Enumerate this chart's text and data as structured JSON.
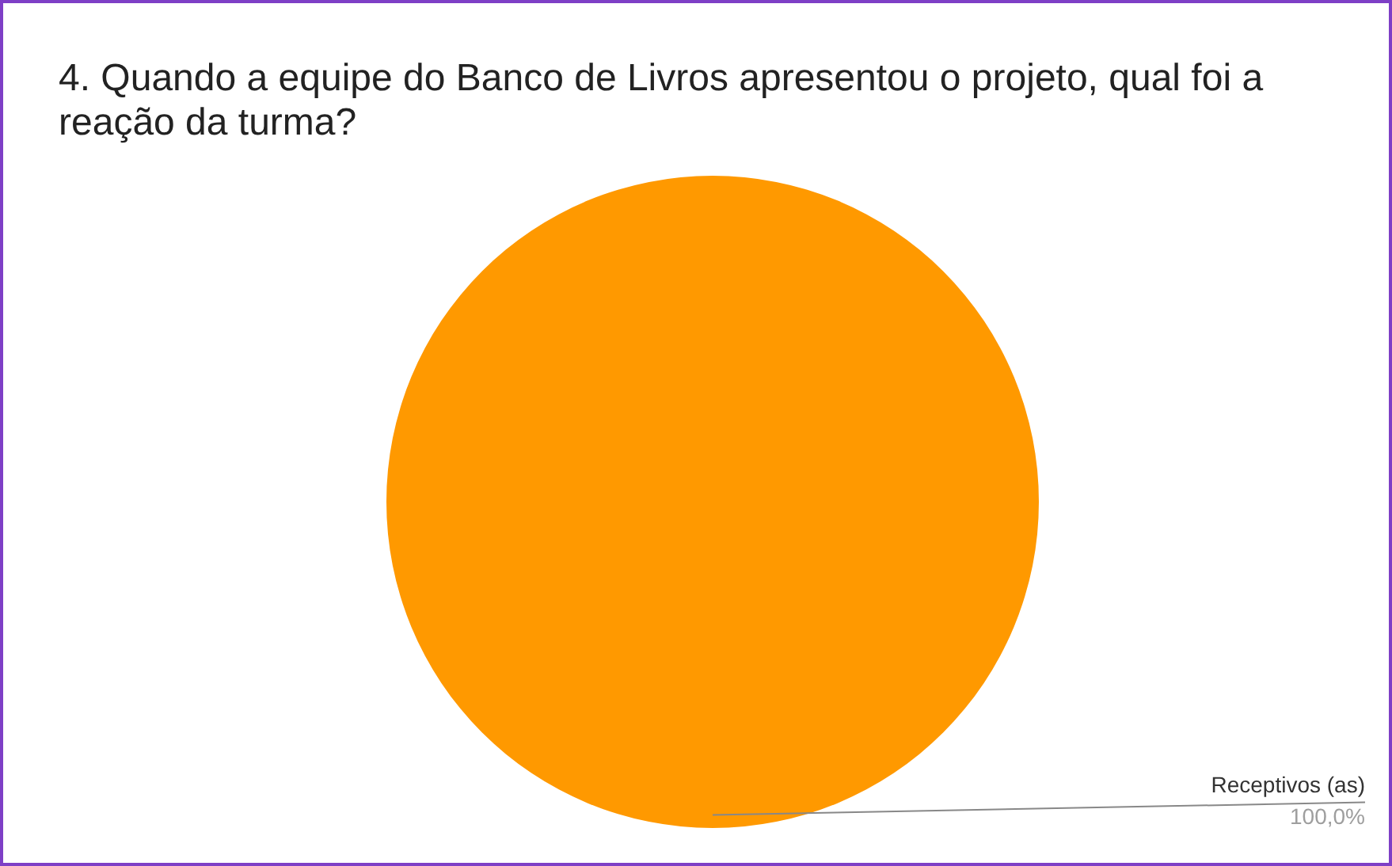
{
  "chart_data": {
    "type": "pie",
    "title": "4. Quando a equipe do Banco de Livros apresentou o projeto, qual foi a reação da turma?",
    "categories": [
      "Receptivos (as)"
    ],
    "values": [
      100
    ],
    "colors": [
      "#ff9900"
    ],
    "value_labels": [
      "100,0%"
    ],
    "legend": false
  }
}
